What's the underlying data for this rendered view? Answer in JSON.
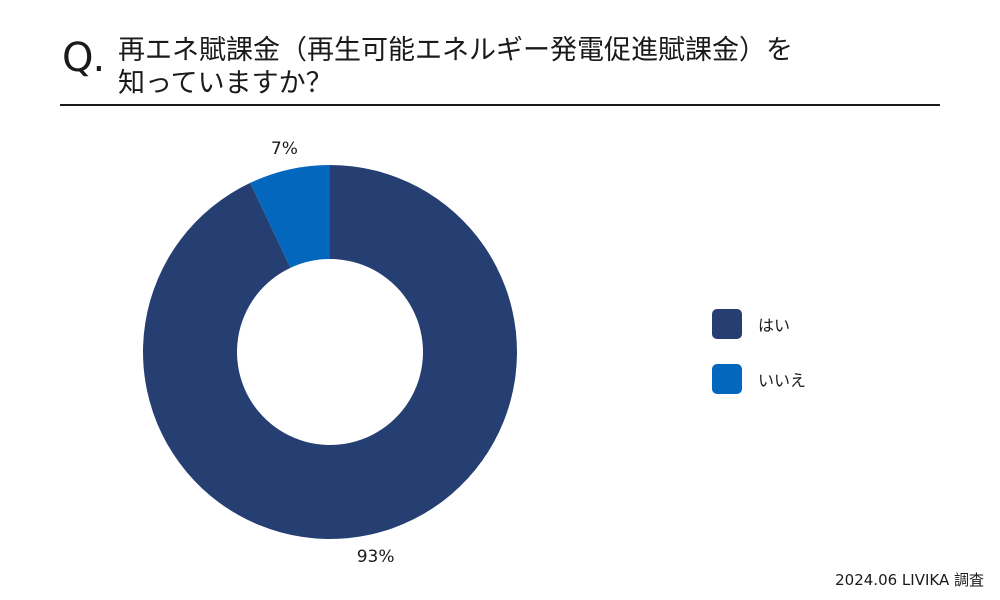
{
  "header": {
    "q_mark": "Q.",
    "title": "再エネ賦課金（再生可能エネルギー発電促進賦課金）を\n知っていますか？"
  },
  "chart_data": {
    "type": "pie",
    "donut": true,
    "categories": [
      "はい",
      "いいえ"
    ],
    "values": [
      93,
      7
    ],
    "value_labels": [
      "93%",
      "7%"
    ],
    "colors": [
      "#253f73",
      "#0368bd"
    ],
    "legend": "right"
  },
  "footer": {
    "source": "2024.06 LIVIKA 調査"
  }
}
